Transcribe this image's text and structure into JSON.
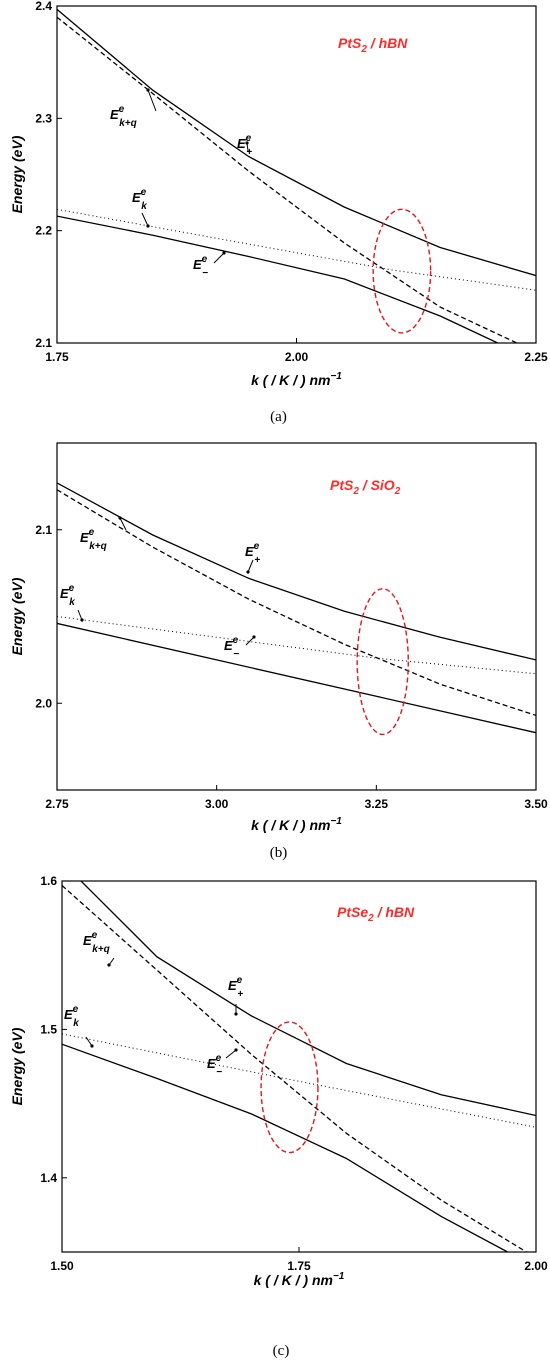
{
  "chart_data": [
    {
      "type": "line",
      "caption": "(a)",
      "title": "PtS2 / hBN",
      "title_main": "PtS",
      "title_sub": "2",
      "title_rest": " / hBN",
      "ylabel": "Energy (eV)",
      "xlabel_main": "k ( / K / ) nm",
      "xlabel_sup": "−1",
      "xlim": [
        1.75,
        2.25
      ],
      "ylim": [
        2.1,
        2.4
      ],
      "xticks": [
        "1.75",
        "2.00",
        "2.25"
      ],
      "yticks": [
        "2.1",
        "2.2",
        "2.3",
        "2.4"
      ],
      "highlight_ellipse": {
        "x": 2.11,
        "y": 2.164,
        "rx": 0.03,
        "ry": 0.055
      },
      "series": [
        {
          "name": "E^e_+",
          "style": "solid",
          "x": [
            1.75,
            1.85,
            1.95,
            2.05,
            2.15,
            2.25
          ],
          "y": [
            2.397,
            2.325,
            2.266,
            2.221,
            2.185,
            2.16
          ]
        },
        {
          "name": "E^e_k+q",
          "style": "dashed",
          "x": [
            1.75,
            1.85,
            1.95,
            2.05,
            2.15,
            2.23
          ],
          "y": [
            2.39,
            2.322,
            2.253,
            2.189,
            2.132,
            2.1
          ]
        },
        {
          "name": "E^e_k",
          "style": "dotted",
          "x": [
            1.75,
            1.95,
            2.1,
            2.25
          ],
          "y": [
            2.219,
            2.188,
            2.165,
            2.147
          ]
        },
        {
          "name": "E^e_−",
          "style": "solid",
          "x": [
            1.75,
            1.85,
            1.95,
            2.05,
            2.15,
            2.21
          ],
          "y": [
            2.213,
            2.196,
            2.177,
            2.157,
            2.124,
            2.1
          ]
        }
      ],
      "labels": {
        "plus": {
          "main": "E",
          "sup": "e",
          "sub": "+"
        },
        "kq": {
          "main": "E",
          "sup": "e",
          "sub": "k+q"
        },
        "k": {
          "main": "E",
          "sup": "e",
          "sub": "k"
        },
        "minus": {
          "main": "E",
          "sup": "e",
          "sub": "−"
        }
      }
    },
    {
      "type": "line",
      "caption": "(b)",
      "title": "PtS2 / SiO2",
      "title_main": "PtS",
      "title_sub": "2",
      "title_rest": " / SiO",
      "title_sub2": "2",
      "ylabel": "Energy (eV)",
      "xlabel_main": "k ( / K / ) nm",
      "xlabel_sup": "−1",
      "xlim": [
        2.75,
        3.5
      ],
      "ylim": [
        1.95,
        2.15
      ],
      "xticks": [
        "2.75",
        "3.00",
        "3.25",
        "3.50"
      ],
      "yticks": [
        "2.0",
        "2.1"
      ],
      "ytick_values": [
        2.0,
        2.1
      ],
      "highlight_ellipse": {
        "x": 3.26,
        "y": 2.024,
        "rx": 0.04,
        "ry": 0.042
      },
      "series": [
        {
          "name": "E^e_+",
          "style": "solid",
          "x": [
            2.75,
            2.9,
            3.05,
            3.2,
            3.35,
            3.5
          ],
          "y": [
            2.127,
            2.097,
            2.072,
            2.053,
            2.038,
            2.025
          ]
        },
        {
          "name": "E^e_k+q",
          "style": "dashed",
          "x": [
            2.75,
            2.9,
            3.05,
            3.2,
            3.35,
            3.5
          ],
          "y": [
            2.123,
            2.09,
            2.06,
            2.034,
            2.011,
            1.993
          ]
        },
        {
          "name": "E^e_k",
          "style": "dotted",
          "x": [
            2.75,
            3.0,
            3.25,
            3.5
          ],
          "y": [
            2.05,
            2.038,
            2.026,
            2.017
          ]
        },
        {
          "name": "E^e_−",
          "style": "solid",
          "x": [
            2.75,
            3.0,
            3.25,
            3.5
          ],
          "y": [
            2.046,
            2.025,
            2.004,
            1.983
          ]
        }
      ],
      "labels": {
        "plus": {
          "main": "E",
          "sup": "e",
          "sub": "+"
        },
        "kq": {
          "main": "E",
          "sup": "e",
          "sub": "k+q"
        },
        "k": {
          "main": "E",
          "sup": "e",
          "sub": "k"
        },
        "minus": {
          "main": "E",
          "sup": "e",
          "sub": "−"
        }
      }
    },
    {
      "type": "line",
      "caption": "(c)",
      "title": "PtSe2 / hBN",
      "title_main": "PtSe",
      "title_sub": "2",
      "title_rest": " / hBN",
      "ylabel": "Energy (eV)",
      "xlabel_main": "k ( / K / ) nm",
      "xlabel_sup": "−1",
      "xlim": [
        1.5,
        2.0
      ],
      "ylim": [
        1.35,
        1.6
      ],
      "xticks": [
        "1.50",
        "1.75",
        "2.00"
      ],
      "yticks": [
        "1.4",
        "1.5",
        "1.6"
      ],
      "highlight_ellipse": {
        "x": 1.74,
        "y": 1.461,
        "rx": 0.03,
        "ry": 0.044
      },
      "series": [
        {
          "name": "E^e_+",
          "style": "solid",
          "x": [
            1.52,
            1.6,
            1.7,
            1.8,
            1.9,
            2.0
          ],
          "y": [
            1.6,
            1.549,
            1.509,
            1.477,
            1.456,
            1.442
          ]
        },
        {
          "name": "E^e_k+q",
          "style": "dashed",
          "x": [
            1.5,
            1.6,
            1.7,
            1.8,
            1.9,
            1.99
          ],
          "y": [
            1.597,
            1.54,
            1.483,
            1.43,
            1.385,
            1.35
          ]
        },
        {
          "name": "E^e_k",
          "style": "dotted",
          "x": [
            1.5,
            1.75,
            2.0
          ],
          "y": [
            1.497,
            1.465,
            1.434
          ]
        },
        {
          "name": "E^e_−",
          "style": "solid",
          "x": [
            1.5,
            1.6,
            1.7,
            1.8,
            1.9,
            1.97
          ],
          "y": [
            1.49,
            1.467,
            1.443,
            1.413,
            1.374,
            1.35
          ]
        }
      ],
      "labels": {
        "plus": {
          "main": "E",
          "sup": "e",
          "sub": "+"
        },
        "kq": {
          "main": "E",
          "sup": "e",
          "sub": "k+q"
        },
        "k": {
          "main": "E",
          "sup": "e",
          "sub": "k"
        },
        "minus": {
          "main": "E",
          "sup": "e",
          "sub": "−"
        }
      }
    }
  ]
}
